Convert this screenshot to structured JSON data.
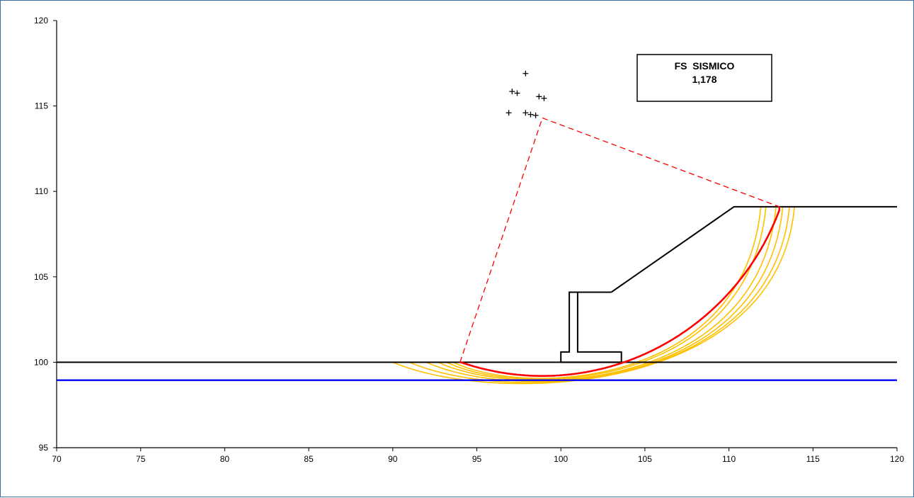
{
  "chart_data": {
    "type": "line",
    "title": "",
    "xlabel": "",
    "ylabel": "",
    "xlim": [
      70,
      120
    ],
    "ylim": [
      95,
      120
    ],
    "x_ticks": [
      "70",
      "75",
      "80",
      "85",
      "90",
      "95",
      "100",
      "105",
      "110",
      "115",
      "120"
    ],
    "y_ticks": [
      "95",
      "100",
      "105",
      "110",
      "115",
      "120"
    ],
    "grid": false,
    "annotation": {
      "line1": "FS  SISMICO",
      "line2": "1,178"
    },
    "colors": {
      "axis": "#000000",
      "ground": "#000000",
      "water": "#0000ff",
      "critical": "#ff0000",
      "trial": "#ffc000",
      "radius": "#ff0000",
      "centers": "#000000",
      "frame": "#3b6ea5"
    },
    "ground_profile_left": [
      [
        70,
        100
      ],
      [
        120,
        100
      ]
    ],
    "ground_profile_slope": [
      [
        103,
        104.1
      ],
      [
        110.3,
        109.1
      ],
      [
        120,
        109.1
      ]
    ],
    "wall": [
      [
        101,
        104.1
      ],
      [
        103,
        104.1
      ],
      [
        101,
        104.1
      ],
      [
        101,
        100.6
      ],
      [
        103.6,
        100.6
      ],
      [
        103.6,
        100
      ],
      [
        100,
        100
      ],
      [
        100,
        100.6
      ],
      [
        100.5,
        100.6
      ],
      [
        100.5,
        104.1
      ],
      [
        101,
        104.1
      ]
    ],
    "water_table": [
      [
        70,
        98.95
      ],
      [
        120,
        98.95
      ]
    ],
    "critical_center": [
      98.9,
      114.3
    ],
    "critical_surface": {
      "center": [
        98.9,
        114.3
      ],
      "x_start": 94,
      "x_end": 113.0,
      "radius": 15.1
    },
    "trial_surfaces": [
      {
        "x_start": 90.0,
        "x_end": 113.9,
        "depth": 98.45
      },
      {
        "x_start": 91.0,
        "x_end": 113.6,
        "depth": 98.55
      },
      {
        "x_start": 92.0,
        "x_end": 113.2,
        "depth": 98.65
      },
      {
        "x_start": 92.7,
        "x_end": 112.8,
        "depth": 98.75
      },
      {
        "x_start": 93.2,
        "x_end": 112.2,
        "depth": 98.85
      },
      {
        "x_start": 93.6,
        "x_end": 111.9,
        "depth": 98.95
      }
    ],
    "centers": [
      [
        97.9,
        116.9
      ],
      [
        97.1,
        115.85
      ],
      [
        97.4,
        115.75
      ],
      [
        98.7,
        115.55
      ],
      [
        99.0,
        115.45
      ],
      [
        96.9,
        114.6
      ],
      [
        97.9,
        114.6
      ],
      [
        98.2,
        114.5
      ],
      [
        98.5,
        114.45
      ]
    ]
  }
}
